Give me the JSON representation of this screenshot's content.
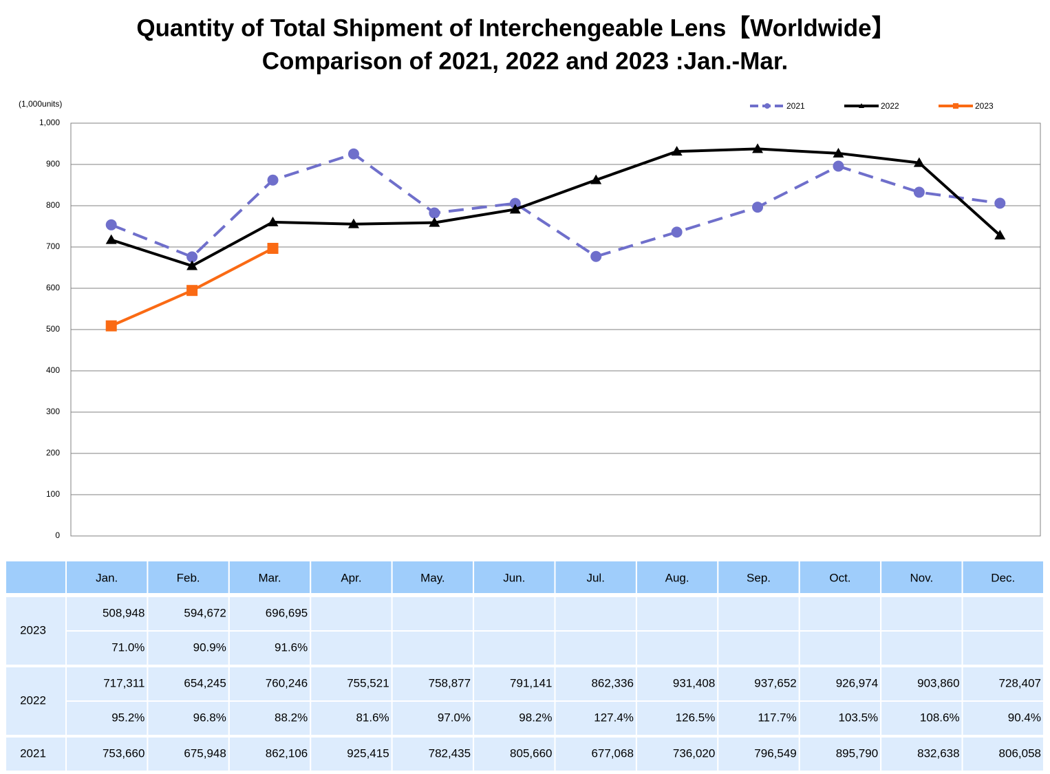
{
  "chart_data": {
    "type": "line",
    "title": "Quantity of Total Shipment of Interchengeable Lens【Worldwide】",
    "subtitle": "Comparison of 2021, 2022 and 2023 :Jan.-Mar.",
    "y_label": "(1,000units)",
    "categories": [
      "Jan.",
      "Feb.",
      "Mar.",
      "Apr.",
      "May.",
      "Jun.",
      "Jul.",
      "Aug.",
      "Sep.",
      "Oct.",
      "Nov.",
      "Dec."
    ],
    "ylim": [
      0,
      1000
    ],
    "yticks": [
      0,
      100,
      200,
      300,
      400,
      500,
      600,
      700,
      800,
      900,
      {
        "value": 1000,
        "label": "1,000"
      }
    ],
    "grid": true,
    "legend": "top-right",
    "series": [
      {
        "name": "2021",
        "color": "#6f6fcb",
        "dashed": true,
        "marker": "circle",
        "values": [
          753.66,
          675.948,
          862.106,
          925.415,
          782.435,
          805.66,
          677.068,
          736.02,
          796.549,
          895.79,
          832.638,
          806.058
        ]
      },
      {
        "name": "2022",
        "color": "#000000",
        "dashed": false,
        "marker": "triangle",
        "values": [
          717.311,
          654.245,
          760.246,
          755.521,
          758.877,
          791.141,
          862.336,
          931.408,
          937.652,
          926.974,
          903.86,
          728.407
        ]
      },
      {
        "name": "2023",
        "color": "#fa6a14",
        "dashed": false,
        "marker": "square",
        "values": [
          508.948,
          594.672,
          696.695,
          null,
          null,
          null,
          null,
          null,
          null,
          null,
          null,
          null
        ]
      }
    ]
  },
  "table": {
    "rows": [
      {
        "year": "2023",
        "quantity": [
          "508,948",
          "594,672",
          "696,695"
        ],
        "ratio": [
          "71.0%",
          "90.9%",
          "91.6%"
        ]
      },
      {
        "year": "2022",
        "quantity": [
          "717,311",
          "654,245",
          "760,246",
          "755,521",
          "758,877",
          "791,141",
          "862,336",
          "931,408",
          "937,652",
          "926,974",
          "903,860",
          "728,407"
        ],
        "ratio": [
          "95.2%",
          "96.8%",
          "88.2%",
          "81.6%",
          "97.0%",
          "98.2%",
          "127.4%",
          "126.5%",
          "117.7%",
          "103.5%",
          "108.6%",
          "90.4%"
        ]
      },
      {
        "year": "2021",
        "quantity": [
          "753,660",
          "675,948",
          "862,106",
          "925,415",
          "782,435",
          "805,660",
          "677,068",
          "736,020",
          "796,549",
          "895,790",
          "832,638",
          "806,058"
        ]
      }
    ]
  }
}
